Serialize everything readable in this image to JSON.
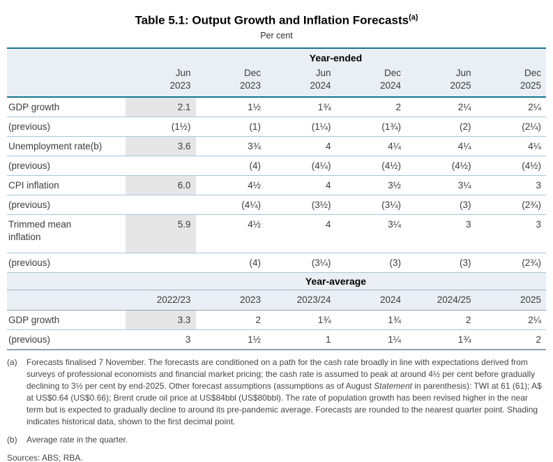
{
  "title": {
    "text": "Table 5.1: Output Growth and Inflation Forecasts",
    "sup": "(a)"
  },
  "subtitle": "Per cent",
  "colors": {
    "accent_line": "#16758f",
    "header_bg": "#e9eff4",
    "row_divider": "#a8c6d6",
    "historical_shading": "#e6e6e6",
    "bottom_line": "#8ba3af"
  },
  "year_ended": {
    "section_label": "Year-ended",
    "col_months": [
      "Jun",
      "Dec",
      "Jun",
      "Dec",
      "Jun",
      "Dec"
    ],
    "col_years": [
      "2023",
      "2023",
      "2024",
      "2024",
      "2025",
      "2025"
    ],
    "rows": [
      {
        "label": "GDP growth",
        "c0": "2.1",
        "c1": "1½",
        "c2": "1¾",
        "c3": "2",
        "c4": "2¼",
        "c5": "2¼"
      },
      {
        "label": "(previous)",
        "c0": "(1½)",
        "c1": "(1)",
        "c2": "(1¼)",
        "c3": "(1¾)",
        "c4": "(2)",
        "c5": "(2¼)"
      },
      {
        "label": "Unemployment rate(b)",
        "c0": "3.6",
        "c1": "3¾",
        "c2": "4",
        "c3": "4¼",
        "c4": "4¼",
        "c5": "4¼"
      },
      {
        "label": "(previous)",
        "c0": "",
        "c1": "(4)",
        "c2": "(4¼)",
        "c3": "(4½)",
        "c4": "(4½)",
        "c5": "(4½)"
      },
      {
        "label": "CPI inflation",
        "c0": "6.0",
        "c1": "4½",
        "c2": "4",
        "c3": "3½",
        "c4": "3¼",
        "c5": "3"
      },
      {
        "label": "(previous)",
        "c0": "",
        "c1": "(4¼)",
        "c2": "(3½)",
        "c3": "(3¼)",
        "c4": "(3)",
        "c5": "(2¾)"
      },
      {
        "label": "Trimmed mean\ninflation",
        "c0": "5.9",
        "c1": "4½",
        "c2": "4",
        "c3": "3¼",
        "c4": "3",
        "c5": "3"
      },
      {
        "label": "(previous)",
        "c0": "",
        "c1": "(4)",
        "c2": "(3¼)",
        "c3": "(3)",
        "c4": "(3)",
        "c5": "(2¾)"
      }
    ]
  },
  "year_average": {
    "section_label": "Year-average",
    "col_years": [
      "2022/23",
      "2023",
      "2023/24",
      "2024",
      "2024/25",
      "2025"
    ],
    "rows": [
      {
        "label": "GDP growth",
        "c0": "3.3",
        "c1": "2",
        "c2": "1¾",
        "c3": "1¾",
        "c4": "2",
        "c5": "2¼"
      },
      {
        "label": "(previous)",
        "c0": "3",
        "c1": "1½",
        "c2": "1",
        "c3": "1¼",
        "c4": "1¾",
        "c5": "2"
      }
    ]
  },
  "footnote_a": {
    "marker": "(a)",
    "text_1": "Forecasts finalised 7 November. The forecasts are conditioned on a path for the cash rate broadly in line with expectations derived from surveys of professional economists and financial market pricing; the cash rate is assumed to peak at around 4½ per cent before gradually declining to 3½ per cent by end-2025. Other forecast assumptions (assumptions as of August ",
    "text_italic": "Statement",
    "text_2": " in parenthesis): TWI at 61 (61); A$ at US$0.64 (US$0.66); Brent crude oil price at US$84bbl (US$80bbl). The rate of population growth has been revised higher in the near term but is expected to gradually decline to around its pre-pandemic average. Forecasts are rounded to the nearest quarter point. Shading indicates historical data, shown to the first decimal point."
  },
  "footnote_b": {
    "marker": "(b)",
    "text": "Average rate in the quarter."
  },
  "sources": "Sources: ABS; RBA."
}
